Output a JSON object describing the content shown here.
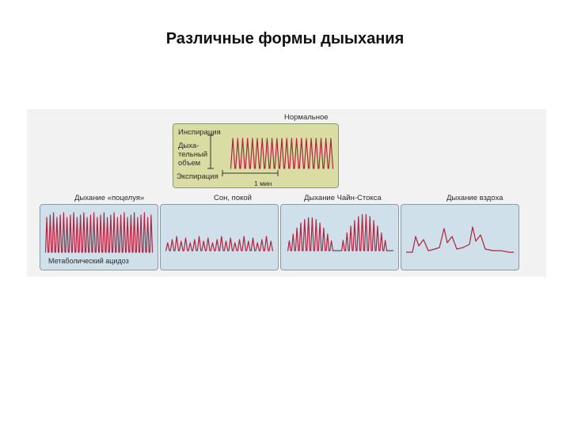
{
  "page": {
    "title": "Различные формы дыыхания"
  },
  "normal_panel": {
    "title": "Нормальное",
    "inspiration": "Инспирация",
    "tidal_volume": "Дыха-\nтельный\nобъем",
    "expiration": "Экспирация",
    "time_scale": "1 мин"
  },
  "panels": [
    {
      "title": "Дыхание «поцелуя»",
      "caption": "Метаболический ацидоз"
    },
    {
      "title": "Сон, покой",
      "caption": ""
    },
    {
      "title": "Дыхание Чайн-Стокса",
      "caption": ""
    },
    {
      "title": "Дыхание вздоха",
      "caption": ""
    }
  ],
  "colors": {
    "trace": "#b2243f",
    "normal_bg": "#d9dda4",
    "panel_bg": "#cfe0ea",
    "figure_bg": "#f2f2f2"
  }
}
